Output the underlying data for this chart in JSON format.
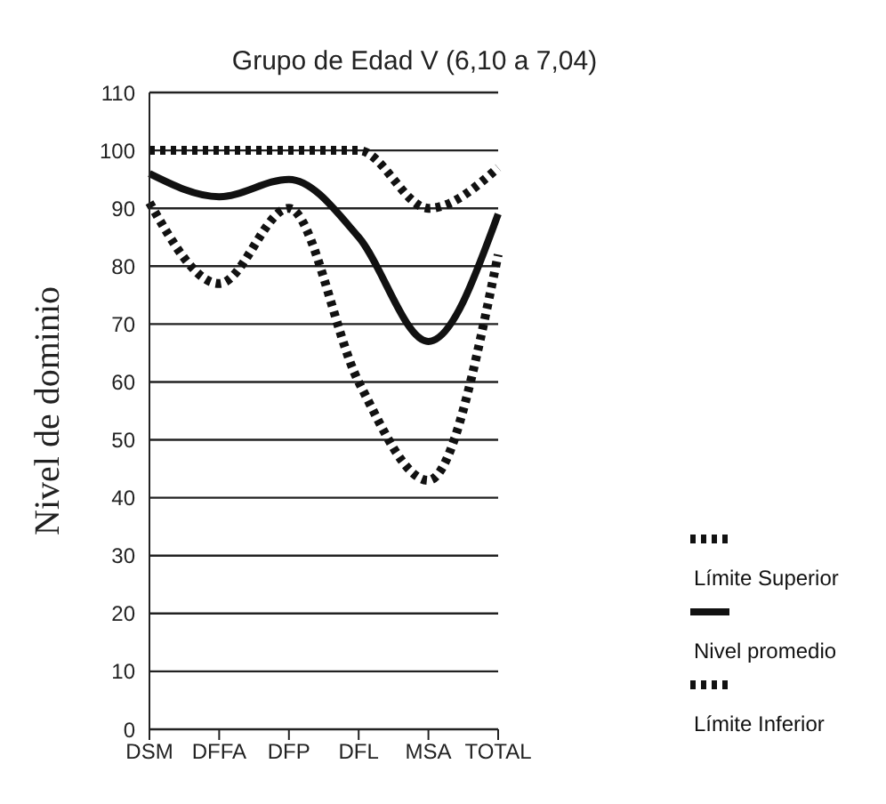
{
  "chart_data": {
    "type": "line",
    "title": "Grupo de Edad V (6,10 a 7,04)",
    "ylabel": "Nivel de dominio",
    "categories": [
      "DSM",
      "DFFA",
      "DFP",
      "DFL",
      "MSA",
      "TOTAL"
    ],
    "series": [
      {
        "name": "Límite Superior",
        "color": "#111111",
        "line_style": "dotted",
        "values": [
          100,
          100,
          100,
          100,
          90,
          97
        ]
      },
      {
        "name": "Nivel promedio",
        "color": "#111111",
        "line_style": "solid",
        "values": [
          96,
          92,
          95,
          85,
          67,
          89
        ]
      },
      {
        "name": "Límite Inferior",
        "color": "#111111",
        "line_style": "dotted",
        "values": [
          91,
          77,
          90,
          60,
          43,
          82
        ]
      }
    ],
    "ylim": [
      0,
      110
    ],
    "yticks": [
      0,
      10,
      20,
      30,
      40,
      50,
      60,
      70,
      80,
      90,
      100,
      110
    ],
    "grid": "y",
    "legend": "bottom right",
    "marker": "none"
  }
}
